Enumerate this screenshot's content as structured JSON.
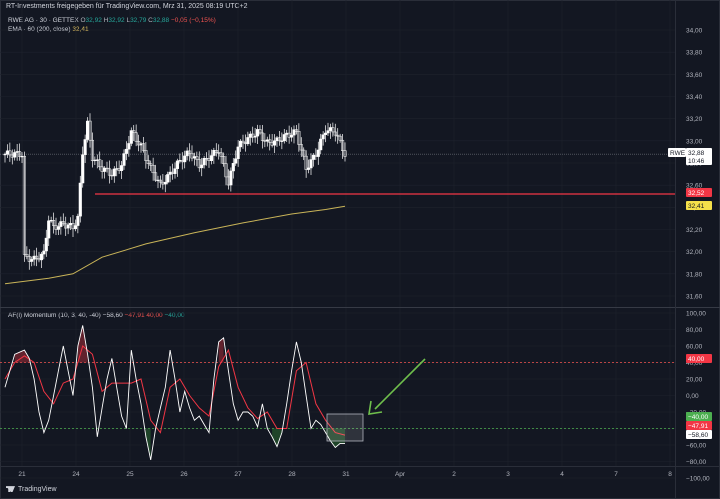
{
  "header": {
    "publisher": "RT-Investments freigegeben für TradingView.com, Mrz 31, 2025 08:19 UTC+2"
  },
  "legend": {
    "symbol": "RWE AG · 30 · GETTEX",
    "ohlc": {
      "O": "32,92",
      "H": "32,92",
      "L": "32,79",
      "C": "32,88"
    },
    "change": "−0,05 (−0,15%)",
    "ema_label": "EMA · 60 (200, close)",
    "ema_value": "32,41"
  },
  "oscillator_legend": {
    "name": "AF(l) Momentum (10, 3, 40, -40)",
    "v1": "−58,60",
    "v2": "−47,91",
    "v3": "40,00",
    "v4": "−40,00"
  },
  "price_tags": {
    "symbol_tag": "RWE",
    "last_price": "32,88",
    "countdown": "10:46",
    "support": "32,52",
    "ema": "32,41"
  },
  "osc_tags": {
    "upper": "40,00",
    "lower": "−40,00",
    "signal": "−47,91",
    "momentum": "−58,60"
  },
  "branding": "TradingView",
  "colors": {
    "background": "#131722",
    "candle": "#ffffff",
    "support_line": "#f23645",
    "ema_line": "#c9b458",
    "momentum_line": "#ffffff",
    "signal_line": "#f23645",
    "upper_band": "#ef5350",
    "lower_band": "#4caf50",
    "arrow": "#6fbf4c"
  },
  "chart_data": [
    {
      "type": "candlestick",
      "x_ticks": [
        "21",
        "24",
        "25",
        "26",
        "27",
        "28",
        "31",
        "Apr",
        "2",
        "3",
        "4",
        "7",
        "8"
      ],
      "y_ticks": [
        "34,00",
        "33,80",
        "33,60",
        "33,40",
        "33,20",
        "33,00",
        "32,80",
        "32,60",
        "32,40",
        "32,20",
        "32,00",
        "31,80",
        "31,60"
      ],
      "ylim": [
        31.5,
        34.05
      ],
      "close_path": [
        [
          0,
          31.95
        ],
        [
          2,
          31.93
        ],
        [
          4,
          31.98
        ],
        [
          5,
          32.3
        ],
        [
          6,
          32.22
        ],
        [
          8,
          32.25
        ],
        [
          10,
          32.22
        ],
        [
          11,
          32.3
        ],
        [
          12,
          32.9
        ],
        [
          13,
          33.15
        ],
        [
          14,
          32.85
        ],
        [
          16,
          32.75
        ],
        [
          18,
          32.7
        ],
        [
          20,
          32.78
        ],
        [
          22,
          33.08
        ],
        [
          24,
          32.95
        ],
        [
          26,
          32.75
        ],
        [
          28,
          32.6
        ],
        [
          30,
          32.7
        ],
        [
          32,
          32.82
        ],
        [
          34,
          32.9
        ],
        [
          36,
          32.78
        ],
        [
          38,
          32.85
        ],
        [
          40,
          32.92
        ],
        [
          42,
          32.62
        ],
        [
          44,
          32.95
        ],
        [
          46,
          33.02
        ],
        [
          48,
          33.08
        ],
        [
          50,
          32.98
        ],
        [
          52,
          33.0
        ],
        [
          54,
          33.05
        ],
        [
          56,
          33.08
        ],
        [
          58,
          32.75
        ],
        [
          60,
          32.88
        ],
        [
          62,
          33.1
        ],
        [
          64,
          33.08
        ],
        [
          65,
          32.98
        ],
        [
          66,
          32.88
        ]
      ],
      "support_level": 32.52,
      "ema_level": 32.41,
      "ema_series_name": "EMA (200, close)",
      "ema_path": [
        [
          -4,
          31.71
        ],
        [
          5,
          31.76
        ],
        [
          10,
          31.8
        ],
        [
          16,
          31.95
        ],
        [
          25,
          32.07
        ],
        [
          35,
          32.17
        ],
        [
          45,
          32.26
        ],
        [
          55,
          32.34
        ],
        [
          62,
          32.38
        ],
        [
          66,
          32.41
        ]
      ]
    },
    {
      "type": "line",
      "name": "AF(l) Momentum (10, 3, 40, -40)",
      "ylim": [
        -100,
        100
      ],
      "y_ticks": [
        "100,00",
        "80,00",
        "60,00",
        "40,00",
        "20,00",
        "0,00",
        "−20,00",
        "−40,00",
        "−60,00",
        "−80,00",
        "−100,00"
      ],
      "upper_band": 40,
      "lower_band": -40,
      "momentum": [
        [
          -4,
          10
        ],
        [
          -2,
          50
        ],
        [
          0,
          55
        ],
        [
          1,
          45
        ],
        [
          2,
          20
        ],
        [
          3,
          -20
        ],
        [
          4,
          -45
        ],
        [
          5,
          -30
        ],
        [
          6,
          0
        ],
        [
          7,
          30
        ],
        [
          8,
          60
        ],
        [
          9,
          30
        ],
        [
          10,
          0
        ],
        [
          11,
          60
        ],
        [
          12,
          85
        ],
        [
          13,
          50
        ],
        [
          14,
          10
        ],
        [
          15,
          -50
        ],
        [
          16,
          -15
        ],
        [
          17,
          20
        ],
        [
          18,
          45
        ],
        [
          19,
          10
        ],
        [
          20,
          -25
        ],
        [
          21,
          -40
        ],
        [
          22,
          55
        ],
        [
          23,
          20
        ],
        [
          24,
          -10
        ],
        [
          25,
          -50
        ],
        [
          26,
          -78
        ],
        [
          27,
          -40
        ],
        [
          28,
          -15
        ],
        [
          29,
          10
        ],
        [
          30,
          55
        ],
        [
          31,
          20
        ],
        [
          32,
          -20
        ],
        [
          33,
          5
        ],
        [
          34,
          -15
        ],
        [
          35,
          -30
        ],
        [
          36,
          -25
        ],
        [
          37,
          -35
        ],
        [
          38,
          -45
        ],
        [
          39,
          20
        ],
        [
          40,
          65
        ],
        [
          41,
          70
        ],
        [
          42,
          30
        ],
        [
          43,
          -10
        ],
        [
          44,
          -30
        ],
        [
          45,
          -20
        ],
        [
          46,
          -20
        ],
        [
          47,
          -25
        ],
        [
          48,
          -38
        ],
        [
          49,
          -10
        ],
        [
          50,
          -40
        ],
        [
          51,
          -50
        ],
        [
          52,
          -62
        ],
        [
          53,
          -45
        ],
        [
          54,
          -10
        ],
        [
          55,
          30
        ],
        [
          56,
          65
        ],
        [
          57,
          40
        ],
        [
          58,
          0
        ],
        [
          59,
          -40
        ],
        [
          60,
          -30
        ],
        [
          61,
          -35
        ],
        [
          62,
          -45
        ],
        [
          63,
          -55
        ],
        [
          64,
          -63
        ],
        [
          65,
          -58
        ],
        [
          66,
          -58
        ]
      ],
      "signal": [
        [
          -4,
          20
        ],
        [
          -2,
          40
        ],
        [
          0,
          48
        ],
        [
          2,
          40
        ],
        [
          4,
          5
        ],
        [
          6,
          -10
        ],
        [
          8,
          15
        ],
        [
          10,
          20
        ],
        [
          12,
          60
        ],
        [
          14,
          50
        ],
        [
          16,
          5
        ],
        [
          18,
          15
        ],
        [
          20,
          15
        ],
        [
          22,
          15
        ],
        [
          24,
          20
        ],
        [
          26,
          -30
        ],
        [
          28,
          -45
        ],
        [
          30,
          10
        ],
        [
          32,
          20
        ],
        [
          34,
          0
        ],
        [
          36,
          -15
        ],
        [
          38,
          -25
        ],
        [
          40,
          35
        ],
        [
          42,
          55
        ],
        [
          44,
          10
        ],
        [
          46,
          -15
        ],
        [
          48,
          -28
        ],
        [
          50,
          -20
        ],
        [
          52,
          -40
        ],
        [
          54,
          -40
        ],
        [
          56,
          30
        ],
        [
          58,
          40
        ],
        [
          60,
          -10
        ],
        [
          62,
          -30
        ],
        [
          64,
          -45
        ],
        [
          66,
          -48
        ]
      ]
    }
  ]
}
